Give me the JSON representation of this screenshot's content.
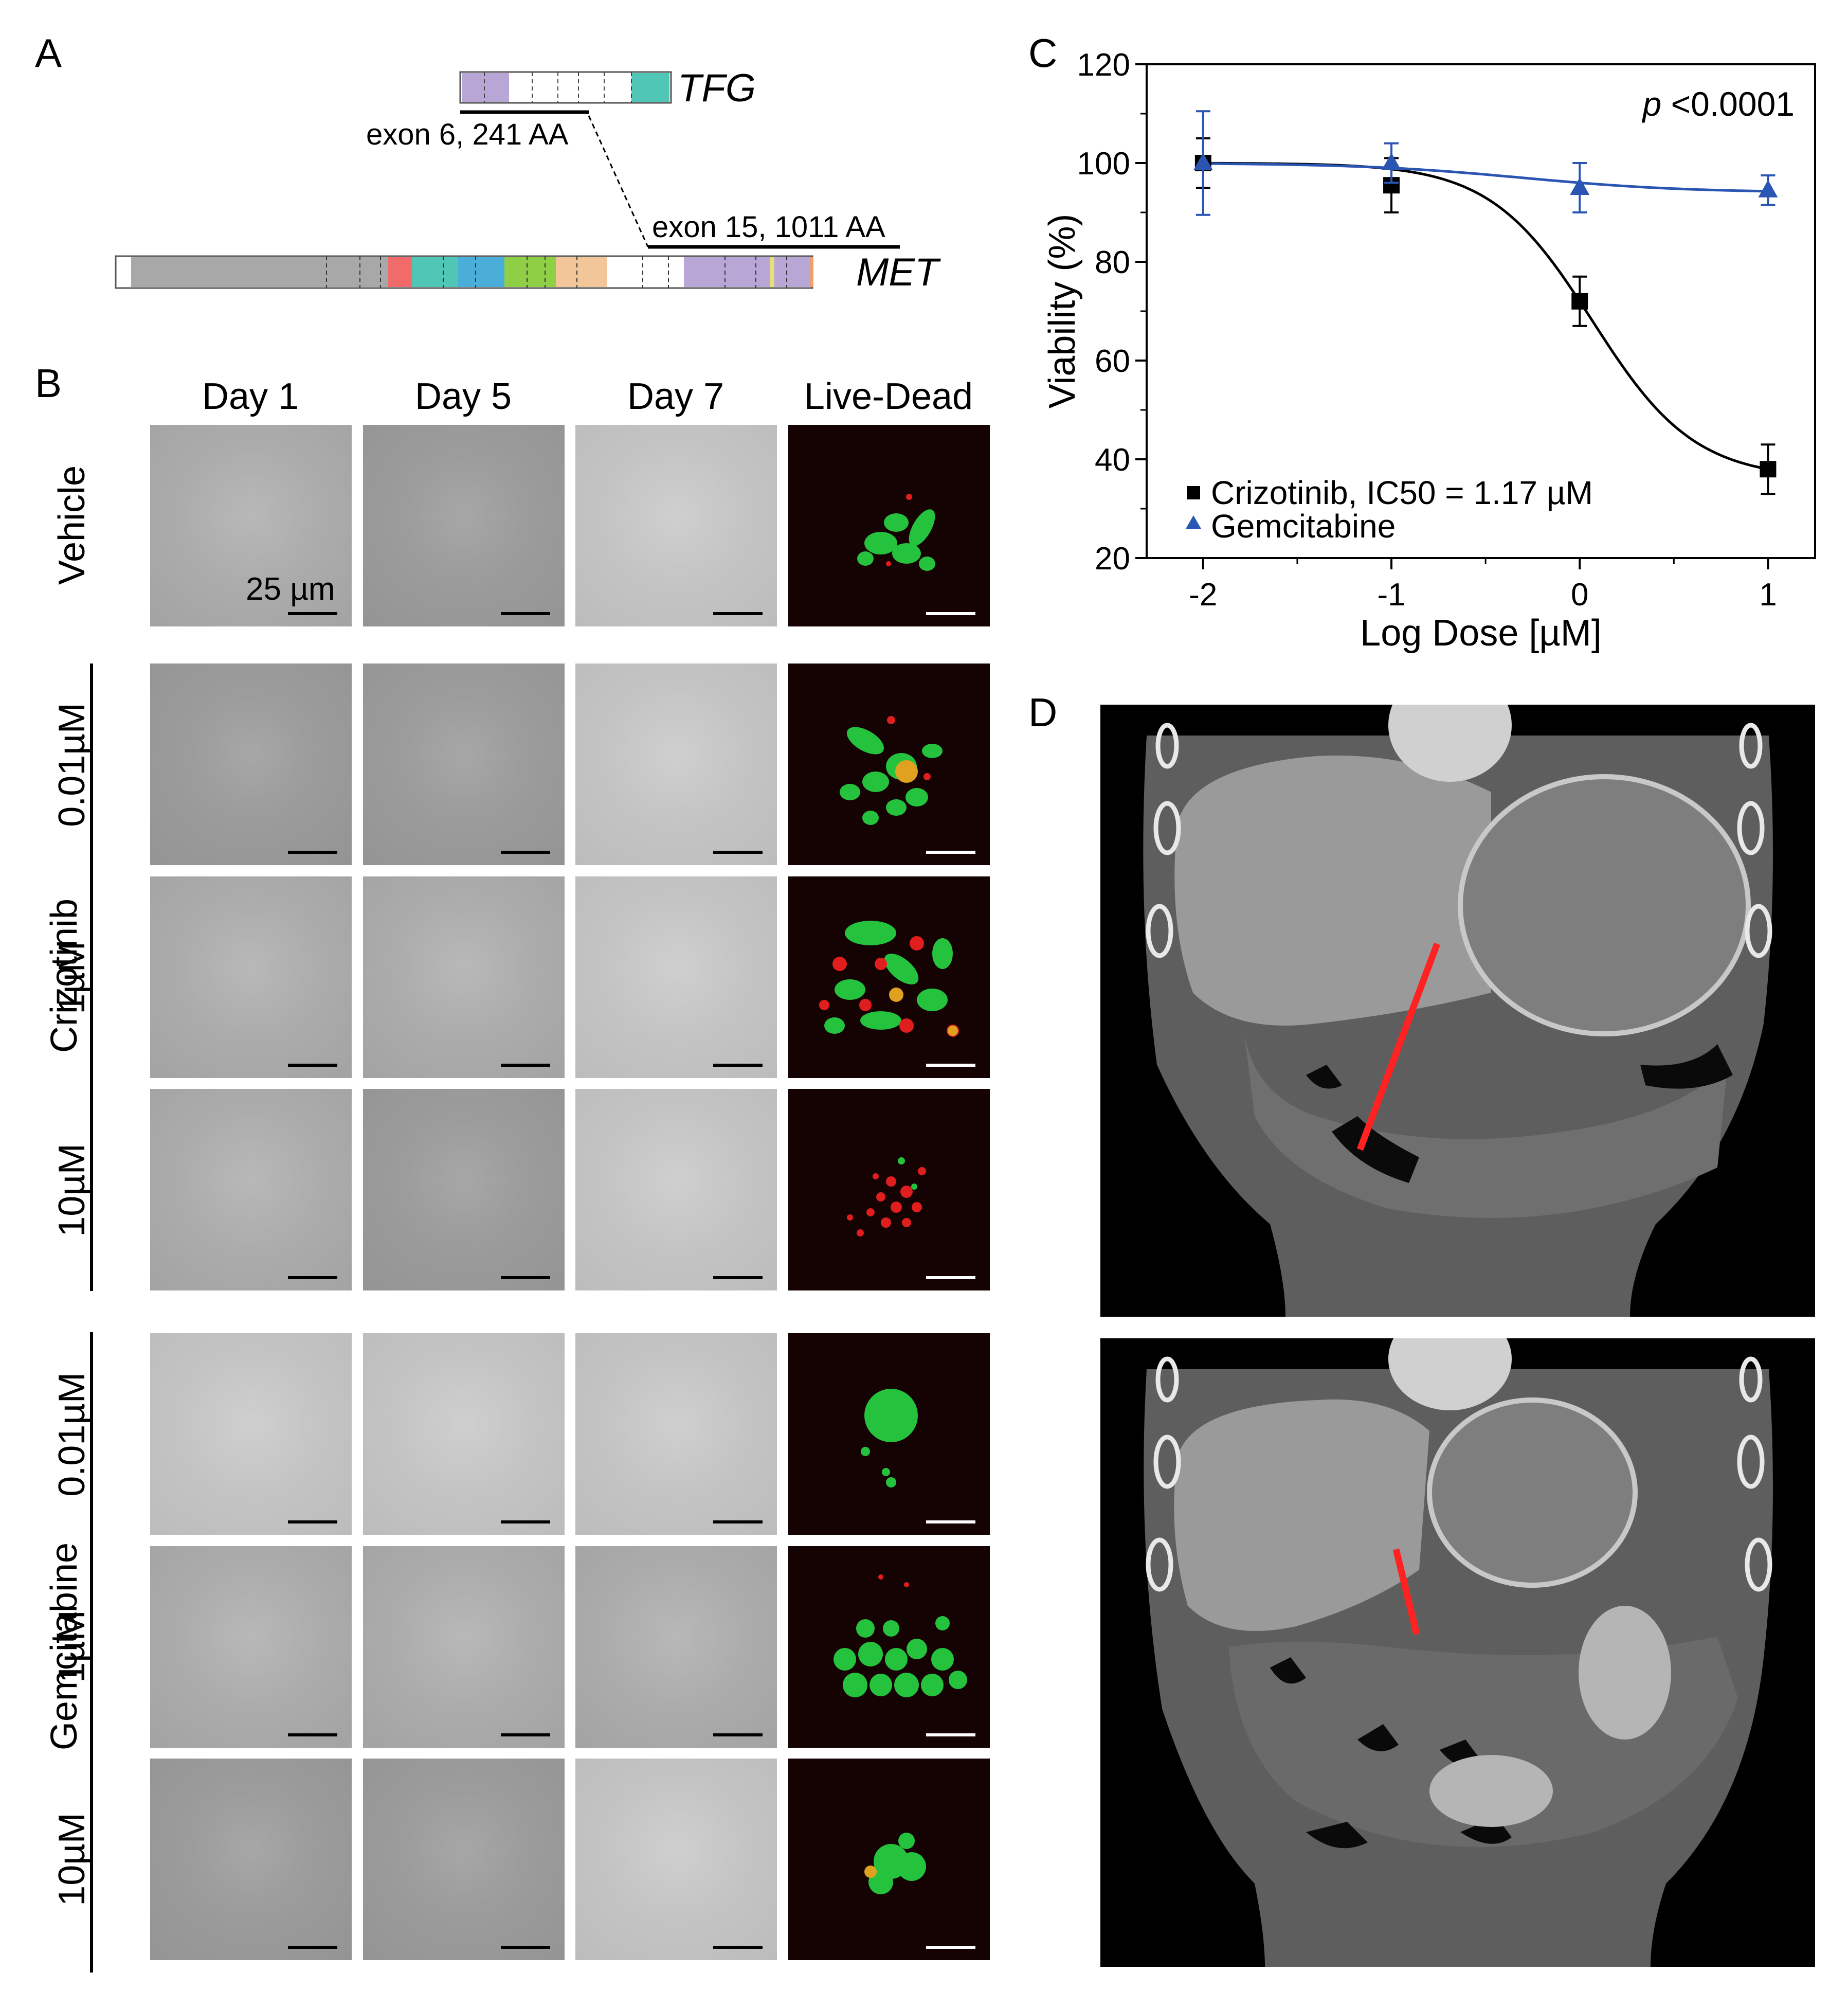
{
  "panels": {
    "a": "A",
    "b": "B",
    "c": "C",
    "d": "D"
  },
  "panel_a": {
    "tfg_label": "TFG",
    "met_label": "MET",
    "tfg_exon": "exon 6, 241 AA",
    "met_exon": "exon 15, 1011 AA"
  },
  "panel_b": {
    "columns": [
      "Day 1",
      "Day 5",
      "Day 7",
      "Live-Dead"
    ],
    "vehicle_label": "Vehicle",
    "scale_label": "25 µm",
    "groups": [
      {
        "name": "Crizotinib",
        "doses": [
          "0.01µM",
          "1µM",
          "10µM"
        ]
      },
      {
        "name": "Gemcitabine",
        "doses": [
          "0.01µM",
          "1µM",
          "10µM"
        ]
      }
    ]
  },
  "chart_data": {
    "type": "scatter",
    "xlabel": "Log Dose [µM]",
    "ylabel": "Viability (%)",
    "xlim": [
      -2.3,
      1.25
    ],
    "ylim": [
      20,
      120
    ],
    "xticks": [
      -2,
      -1,
      0,
      1
    ],
    "xtick_labels": [
      "-2",
      "-1",
      "0",
      "1"
    ],
    "yticks": [
      20,
      40,
      60,
      80,
      100,
      120
    ],
    "ytick_labels": [
      "20",
      "40",
      "60",
      "80",
      "100",
      "120"
    ],
    "annotation": {
      "italic": "p",
      "rest": " <0.0001"
    },
    "legend_position": "bottom-left",
    "series": [
      {
        "name": "Crizotinib, IC50 = 1.17 µM",
        "marker": "square",
        "color": "#000000",
        "x": [
          -2,
          -1,
          0,
          1
        ],
        "y": [
          100,
          95.5,
          72,
          38
        ],
        "err": [
          5,
          5.5,
          5,
          5
        ],
        "fit": {
          "top": 100,
          "bottom": 36,
          "log_ic50": 0.068,
          "hill": 1.6
        }
      },
      {
        "name": "Gemcitabine",
        "marker": "triangle",
        "color": "#2b55b3",
        "x": [
          -2,
          -1,
          0,
          1
        ],
        "y": [
          100,
          100,
          95,
          94.5
        ],
        "err": [
          10.5,
          4,
          5,
          3
        ],
        "fit": {
          "top": 100,
          "bottom": 94,
          "log_ic50": -0.3,
          "hill": 1.0
        }
      }
    ]
  }
}
